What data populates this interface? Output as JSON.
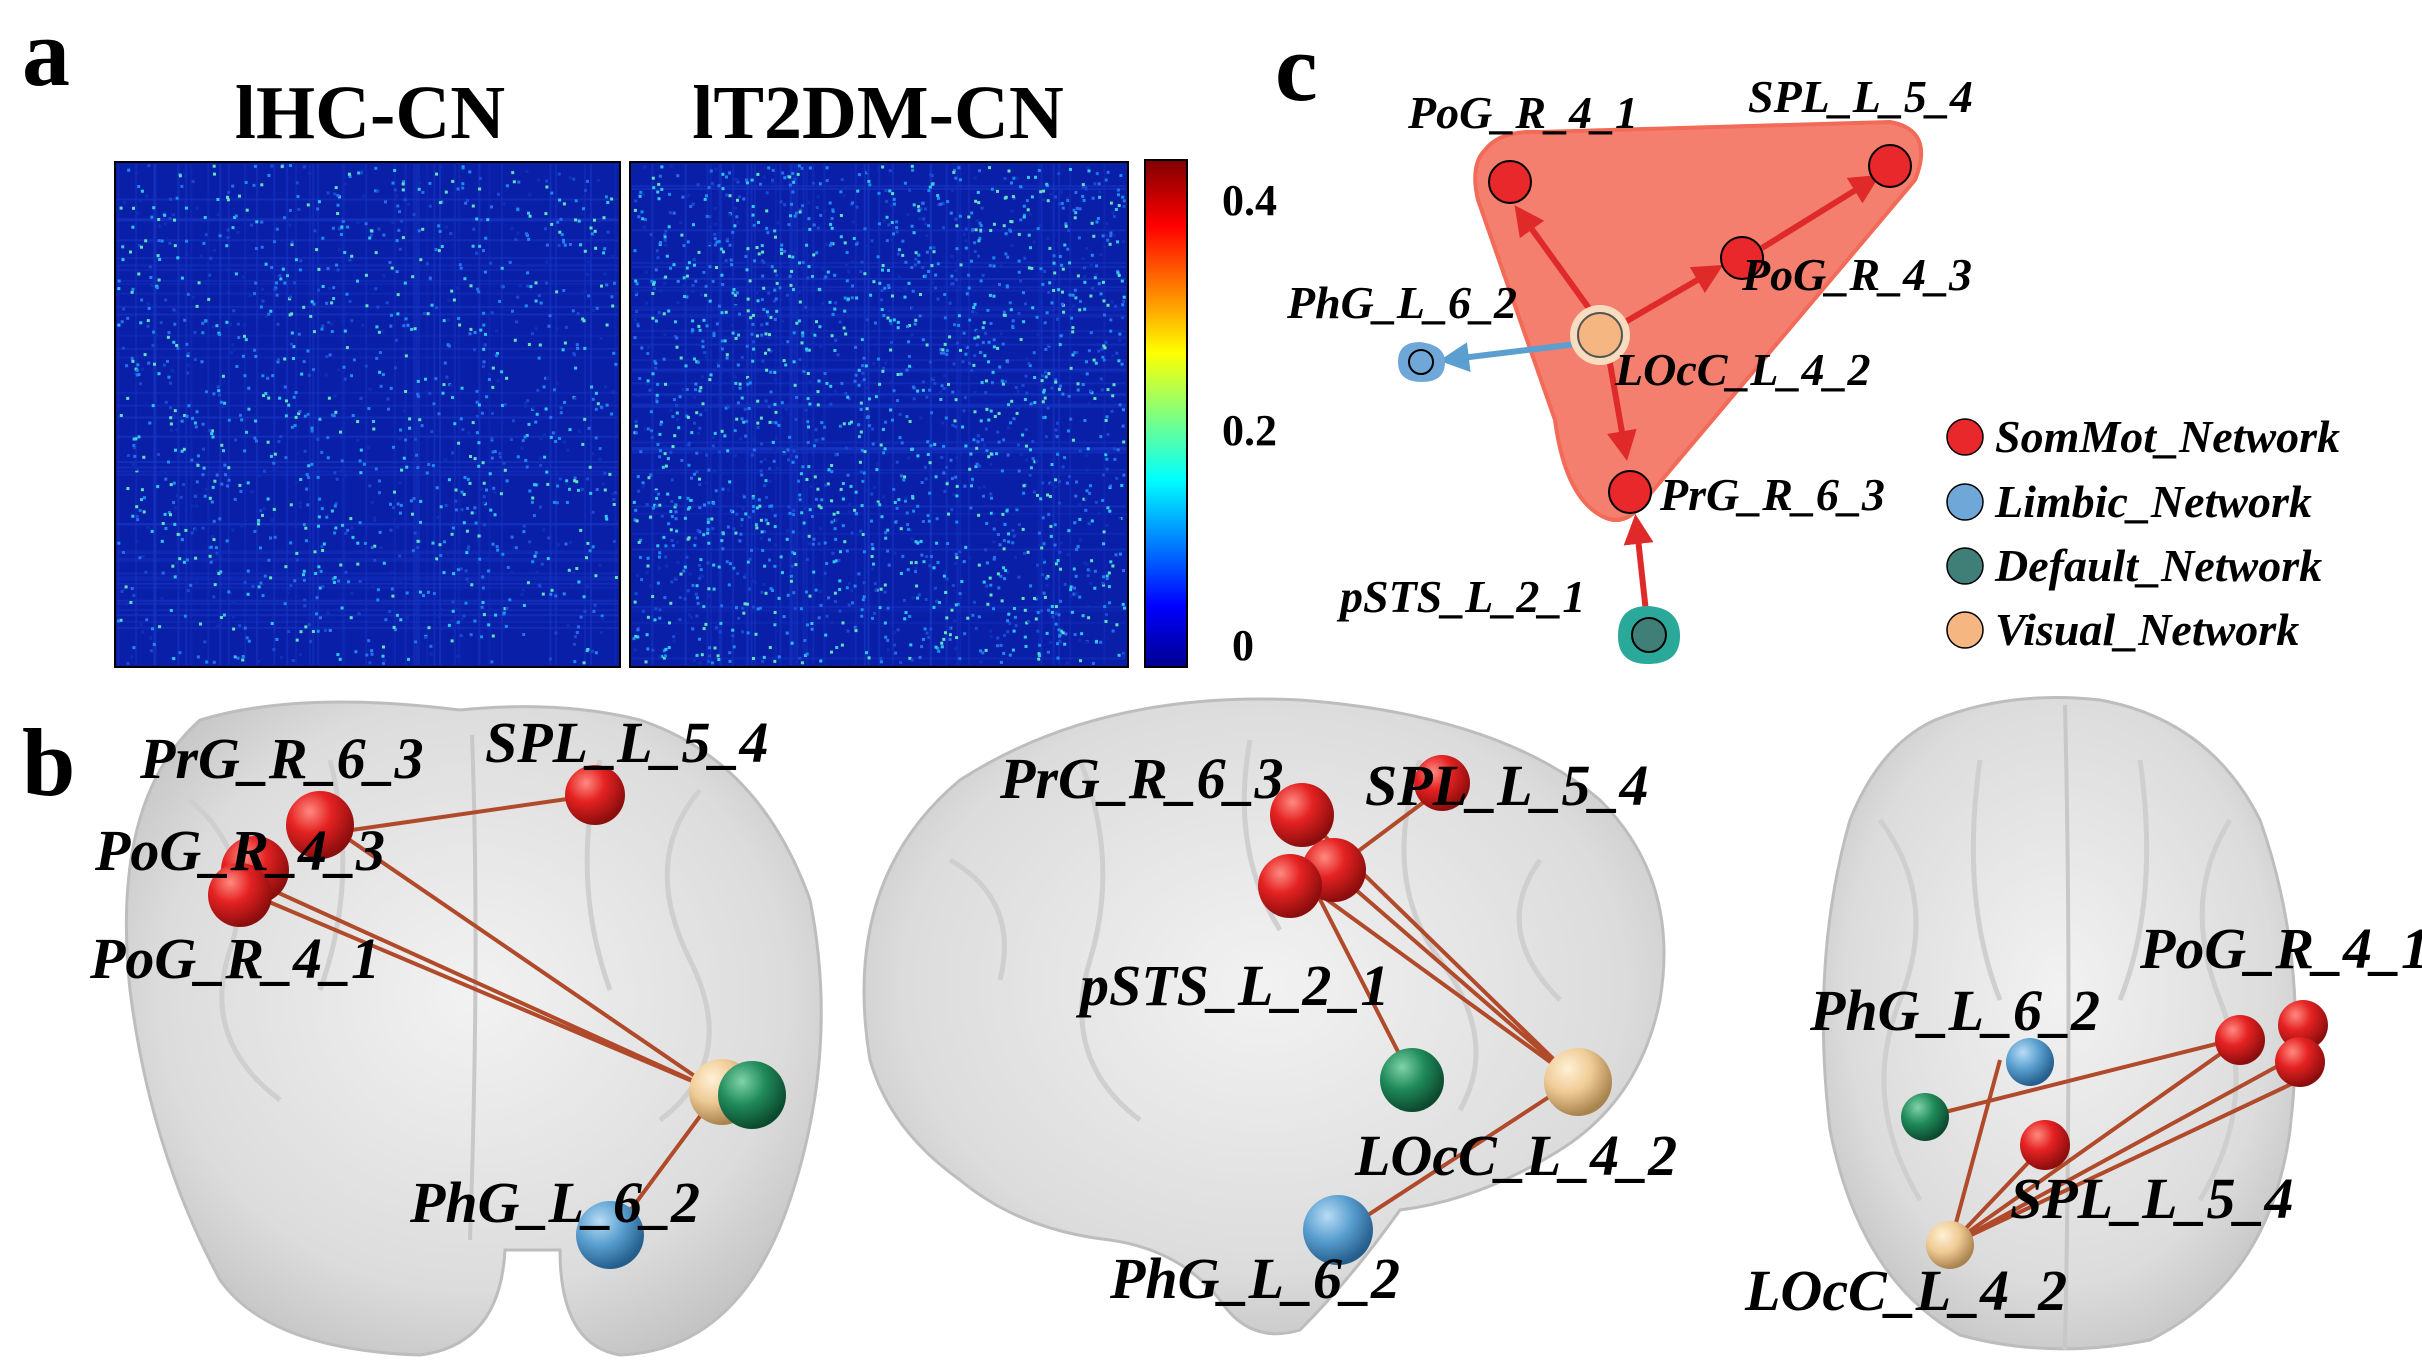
{
  "panels": {
    "a": {
      "letter": "a",
      "matrices": [
        {
          "title": "lHC-CN"
        },
        {
          "title": "lT2DM-CN"
        }
      ],
      "colorbar": {
        "ticks": [
          "0.4",
          "0.2",
          "0"
        ],
        "min": 0,
        "max": 0.45
      }
    },
    "b": {
      "letter": "b",
      "views": [
        {
          "labels": [
            "PrG_R_6_3",
            "SPL_L_5_4",
            "PoG_R_4_3",
            "PoG_R_4_1",
            "PhG_L_6_2"
          ]
        },
        {
          "labels": [
            "PrG_R_6_3",
            "SPL_L_5_4",
            "pSTS_L_2_1",
            "LOcC_L_4_2",
            "PhG_L_6_2"
          ]
        },
        {
          "labels": [
            "PoG_R_4_1",
            "PhG_L_6_2",
            "SPL_L_5_4",
            "LOcC_L_4_2"
          ]
        }
      ]
    },
    "c": {
      "letter": "c",
      "nodes": [
        {
          "label": "PoG_R_4_1",
          "network": "SomMot_Network"
        },
        {
          "label": "SPL_L_5_4",
          "network": "SomMot_Network"
        },
        {
          "label": "PoG_R_4_3",
          "network": "SomMot_Network"
        },
        {
          "label": "PhG_L_6_2",
          "network": "Limbic_Network"
        },
        {
          "label": "LOcC_L_4_2",
          "network": "Visual_Network"
        },
        {
          "label": "PrG_R_6_3",
          "network": "SomMot_Network"
        },
        {
          "label": "pSTS_L_2_1",
          "network": "Default_Network"
        }
      ],
      "legend": [
        {
          "label": "SomMot_Network",
          "color": "#e8282a"
        },
        {
          "label": "Limbic_Network",
          "color": "#6fa8d8"
        },
        {
          "label": "Default_Network",
          "color": "#3f7f78"
        },
        {
          "label": "Visual_Network",
          "color": "#f6b682"
        }
      ],
      "hull_color": "#f47f6e"
    }
  }
}
